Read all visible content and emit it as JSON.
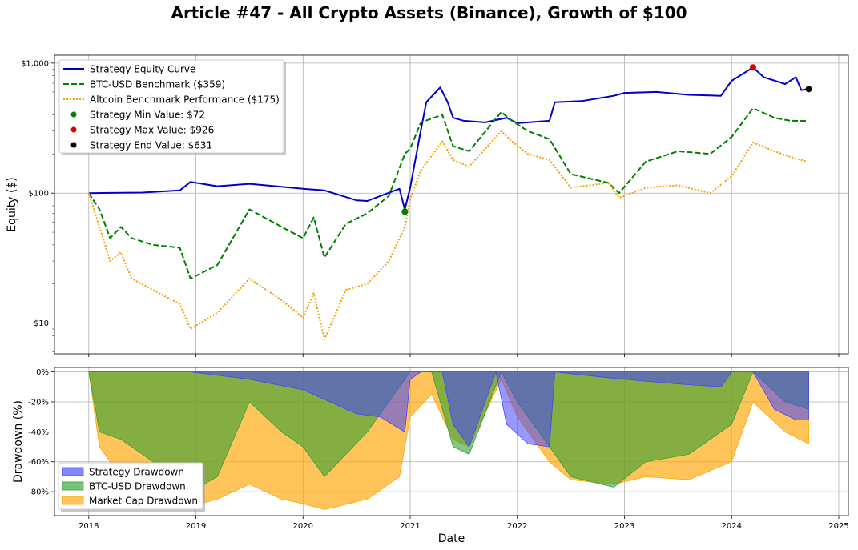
{
  "figure": {
    "title": "Article #47 - All Crypto Assets (Binance), Growth of $100"
  },
  "chart_data": [
    {
      "type": "line",
      "scale": "log",
      "ylabel": "Equity ($)",
      "xlabel": "",
      "yticks": [
        {
          "value": 10,
          "label": "$10"
        },
        {
          "value": 100,
          "label": "$100"
        },
        {
          "value": 1000,
          "label": "$1,000"
        }
      ],
      "ylim": [
        5.8,
        1150
      ],
      "xlim": [
        2017.68,
        2025.09
      ],
      "grid": true,
      "legend_position": "top-left",
      "series": [
        {
          "name": "Strategy Equity Curve",
          "color": "#0000cc",
          "style": "solid",
          "x": [
            2018.0,
            2018.5,
            2018.85,
            2018.95,
            2019.2,
            2019.5,
            2019.8,
            2020.0,
            2020.2,
            2020.5,
            2020.6,
            2020.72,
            2020.9,
            2020.95,
            2021.0,
            2021.08,
            2021.15,
            2021.28,
            2021.35,
            2021.4,
            2021.5,
            2021.7,
            2021.9,
            2022.0,
            2022.3,
            2022.35,
            2022.6,
            2022.9,
            2023.0,
            2023.3,
            2023.6,
            2023.9,
            2024.0,
            2024.2,
            2024.3,
            2024.5,
            2024.6,
            2024.65,
            2024.72
          ],
          "values": [
            100,
            101,
            105,
            122,
            113,
            118,
            112,
            108,
            105,
            88,
            87,
            95,
            108,
            75,
            110,
            250,
            500,
            650,
            500,
            380,
            360,
            350,
            380,
            345,
            360,
            500,
            510,
            560,
            590,
            600,
            570,
            560,
            730,
            926,
            780,
            690,
            780,
            620,
            631
          ]
        },
        {
          "name": "BTC-USD Benchmark ($359)",
          "color": "#008000",
          "style": "dashed",
          "x": [
            2018.0,
            2018.1,
            2018.2,
            2018.3,
            2018.4,
            2018.6,
            2018.85,
            2018.95,
            2019.2,
            2019.5,
            2019.8,
            2020.0,
            2020.1,
            2020.2,
            2020.4,
            2020.6,
            2020.8,
            2020.95,
            2021.0,
            2021.1,
            2021.3,
            2021.4,
            2021.55,
            2021.85,
            2021.95,
            2022.1,
            2022.3,
            2022.5,
            2022.85,
            2022.95,
            2023.2,
            2023.5,
            2023.8,
            2024.0,
            2024.2,
            2024.4,
            2024.55,
            2024.7
          ],
          "values": [
            100,
            75,
            45,
            55,
            45,
            40,
            38,
            22,
            28,
            75,
            55,
            45,
            65,
            32,
            58,
            70,
            95,
            200,
            220,
            350,
            400,
            230,
            210,
            420,
            360,
            300,
            260,
            140,
            120,
            100,
            175,
            210,
            200,
            270,
            450,
            380,
            360,
            359
          ]
        },
        {
          "name": "Altcoin Benchmark Performance ($175)",
          "color": "#f0a000",
          "style": "dotted",
          "x": [
            2018.0,
            2018.1,
            2018.2,
            2018.3,
            2018.4,
            2018.6,
            2018.85,
            2018.95,
            2019.2,
            2019.5,
            2019.8,
            2020.0,
            2020.1,
            2020.2,
            2020.4,
            2020.6,
            2020.8,
            2020.95,
            2021.0,
            2021.1,
            2021.3,
            2021.4,
            2021.55,
            2021.85,
            2021.95,
            2022.1,
            2022.3,
            2022.5,
            2022.85,
            2022.95,
            2023.2,
            2023.5,
            2023.8,
            2024.0,
            2024.2,
            2024.4,
            2024.55,
            2024.7
          ],
          "values": [
            100,
            55,
            30,
            35,
            22,
            18,
            14,
            9,
            12,
            22,
            15,
            11,
            17,
            7.5,
            18,
            20,
            30,
            55,
            90,
            150,
            250,
            180,
            160,
            300,
            250,
            200,
            180,
            110,
            120,
            92,
            110,
            115,
            100,
            135,
            245,
            210,
            190,
            175
          ]
        },
        {
          "name": "Strategy Min Value: $72",
          "color": "#008000",
          "style": "marker",
          "x": [
            2020.95
          ],
          "values": [
            72
          ]
        },
        {
          "name": "Strategy Max Value: $926",
          "color": "#dd0000",
          "style": "marker",
          "x": [
            2024.2
          ],
          "values": [
            926
          ]
        },
        {
          "name": "Strategy End Value: $631",
          "color": "#000000",
          "style": "marker",
          "x": [
            2024.72
          ],
          "values": [
            631
          ]
        }
      ]
    },
    {
      "type": "area",
      "xlabel": "Date",
      "ylabel": "Drawdown (%)",
      "ylim": [
        -96,
        3
      ],
      "xlim": [
        2017.68,
        2025.09
      ],
      "yticks": [
        {
          "value": 0,
          "label": "0%"
        },
        {
          "value": -20,
          "label": "-20%"
        },
        {
          "value": -40,
          "label": "-40%"
        },
        {
          "value": -60,
          "label": "-60%"
        },
        {
          "value": -80,
          "label": "-80%"
        }
      ],
      "xticks": [
        "2018",
        "2019",
        "2020",
        "2021",
        "2022",
        "2023",
        "2024",
        "2025"
      ],
      "grid": true,
      "legend_position": "bottom-left",
      "series": [
        {
          "name": "Strategy Drawdown",
          "color": "#4444ff",
          "x": [
            2018.0,
            2018.85,
            2018.95,
            2019.5,
            2020.0,
            2020.5,
            2020.72,
            2020.95,
            2021.0,
            2021.1,
            2021.3,
            2021.4,
            2021.55,
            2021.7,
            2021.8,
            2021.9,
            2022.1,
            2022.3,
            2022.35,
            2022.6,
            2023.0,
            2023.5,
            2023.9,
            2024.0,
            2024.2,
            2024.4,
            2024.6,
            2024.72
          ],
          "values": [
            0,
            0,
            0,
            -5,
            -12,
            -28,
            -30,
            -40,
            -5,
            0,
            0,
            -35,
            -50,
            -20,
            0,
            -35,
            -48,
            -50,
            0,
            -2,
            -5,
            -8,
            -10,
            0,
            0,
            -25,
            -32,
            -32
          ]
        },
        {
          "name": "BTC-USD Drawdown",
          "color": "#33a033",
          "x": [
            2018.0,
            2018.1,
            2018.3,
            2018.6,
            2018.95,
            2019.2,
            2019.5,
            2019.8,
            2020.0,
            2020.2,
            2020.6,
            2020.9,
            2021.0,
            2021.2,
            2021.4,
            2021.55,
            2021.85,
            2022.0,
            2022.3,
            2022.5,
            2022.9,
            2023.2,
            2023.6,
            2024.0,
            2024.2,
            2024.5,
            2024.72
          ],
          "values": [
            0,
            -40,
            -45,
            -60,
            -80,
            -70,
            -20,
            -40,
            -50,
            -70,
            -40,
            -10,
            0,
            0,
            -50,
            -55,
            0,
            -20,
            -50,
            -70,
            -77,
            -60,
            -55,
            -35,
            0,
            -20,
            -25
          ]
        },
        {
          "name": "Market Cap Drawdown",
          "color": "#ffa500",
          "x": [
            2018.0,
            2018.1,
            2018.3,
            2018.6,
            2018.95,
            2019.2,
            2019.5,
            2019.8,
            2020.0,
            2020.2,
            2020.6,
            2020.9,
            2021.0,
            2021.2,
            2021.4,
            2021.55,
            2021.85,
            2022.0,
            2022.3,
            2022.5,
            2022.9,
            2023.2,
            2023.6,
            2024.0,
            2024.2,
            2024.5,
            2024.72
          ],
          "values": [
            0,
            -50,
            -70,
            -80,
            -90,
            -85,
            -75,
            -85,
            -88,
            -92,
            -85,
            -70,
            -30,
            -15,
            -45,
            -50,
            -5,
            -30,
            -60,
            -72,
            -75,
            -70,
            -72,
            -60,
            -20,
            -40,
            -48
          ]
        }
      ]
    }
  ]
}
